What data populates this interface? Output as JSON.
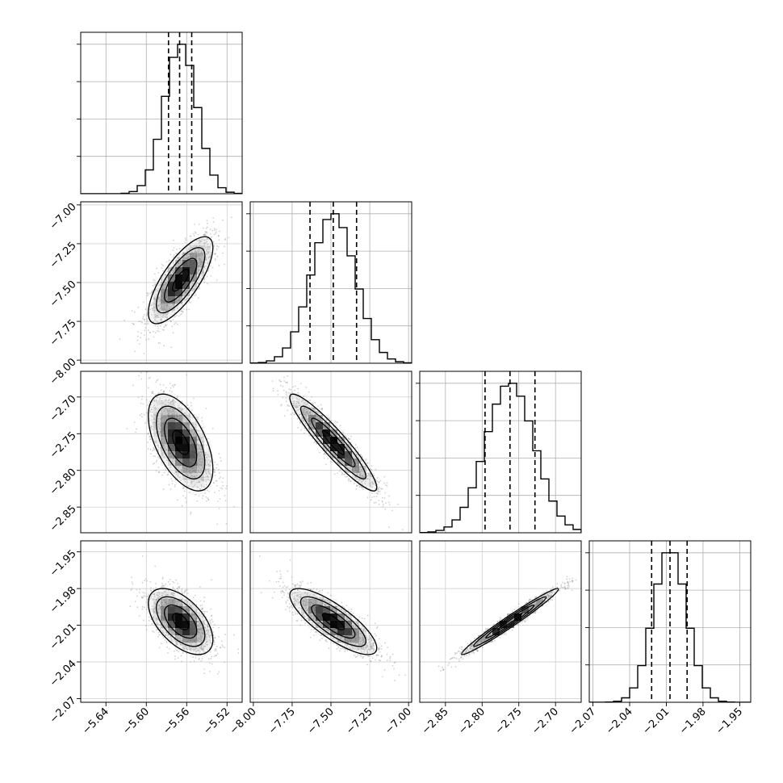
{
  "chart_data": {
    "type": "corner",
    "parameters": [
      "",
      "",
      "",
      ""
    ],
    "ranges": [
      [
        -5.665,
        -5.505
      ],
      [
        -8.02,
        -6.98
      ],
      [
        -2.885,
        -2.665
      ],
      [
        -2.073,
        -1.941
      ]
    ],
    "ticks": [
      [
        -5.64,
        -5.6,
        -5.56,
        -5.52
      ],
      [
        -8.0,
        -7.75,
        -7.5,
        -7.25,
        -7.0
      ],
      [
        -2.85,
        -2.8,
        -2.75,
        -2.7
      ],
      [
        -2.07,
        -2.04,
        -2.01,
        -1.98,
        -1.95
      ]
    ],
    "tick_labels": [
      [
        "−5.64",
        "−5.60",
        "−5.56",
        "−5.52"
      ],
      [
        "−8.00",
        "−7.75",
        "−7.50",
        "−7.25",
        "−7.00"
      ],
      [
        "−2.85",
        "−2.80",
        "−2.75",
        "−2.70"
      ],
      [
        "−2.07",
        "−2.04",
        "−2.01",
        "−1.98",
        "−1.95"
      ]
    ],
    "quantiles": [
      [
        -5.578,
        -5.567,
        -5.555
      ],
      [
        -7.635,
        -7.485,
        -7.335
      ],
      [
        -2.796,
        -2.762,
        -2.728
      ],
      [
        -2.022,
        -2.007,
        -1.993
      ]
    ],
    "means": [
      -5.566,
      -7.485,
      -2.762,
      -2.007
    ],
    "sds": [
      0.016,
      0.14,
      0.033,
      0.0135
    ],
    "correlations": [
      [
        1.0,
        0.75,
        -0.55,
        -0.55
      ],
      [
        0.75,
        1.0,
        -0.93,
        -0.8
      ],
      [
        -0.55,
        -0.93,
        1.0,
        0.98
      ],
      [
        -0.55,
        -0.8,
        0.98,
        1.0
      ]
    ],
    "histogram_bins": 20,
    "grid": true
  }
}
